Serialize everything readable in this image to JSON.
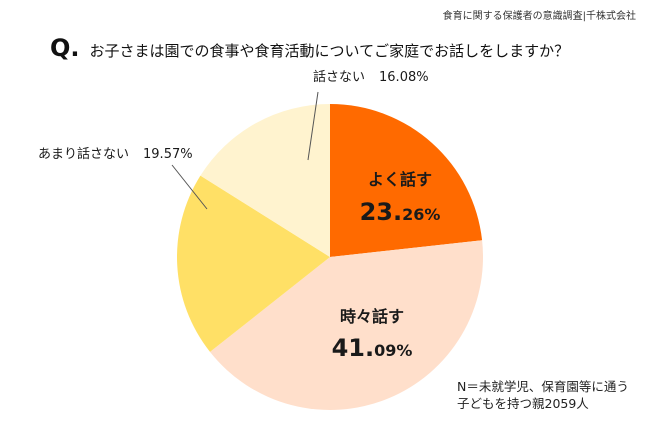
{
  "source": "食育に関する保護者の意識調査|千株式会社",
  "question": {
    "marker": "Q.",
    "text": "お子さまは園での食事や食育活動についてご家庭でお話しをしますか？"
  },
  "note": [
    "N＝未就学児、保育園等に通う",
    "子どもを持つ親2059人"
  ],
  "chart_data": {
    "type": "pie",
    "start_angle_deg": 0,
    "direction": "clockwise",
    "slices": [
      {
        "label": "よく話す",
        "value": 23.26,
        "value_main": "23.",
        "value_small": "26%",
        "color": "#FF6A00",
        "label_style": "inside",
        "text_color": "#1a1a1a"
      },
      {
        "label": "時々話す",
        "value": 41.09,
        "value_main": "41.",
        "value_small": "09%",
        "color": "#FFDFCB",
        "label_style": "inside",
        "text_color": "#1a1a1a"
      },
      {
        "label": "あまり話さない",
        "value": 19.57,
        "value_text": "19.57%",
        "color": "#FFE066",
        "label_style": "outside",
        "text_color": "#1a1a1a"
      },
      {
        "label": "話さない",
        "value": 16.08,
        "value_text": "16.08%",
        "color": "#FFF3CF",
        "label_style": "outside",
        "text_color": "#1a1a1a"
      }
    ]
  }
}
